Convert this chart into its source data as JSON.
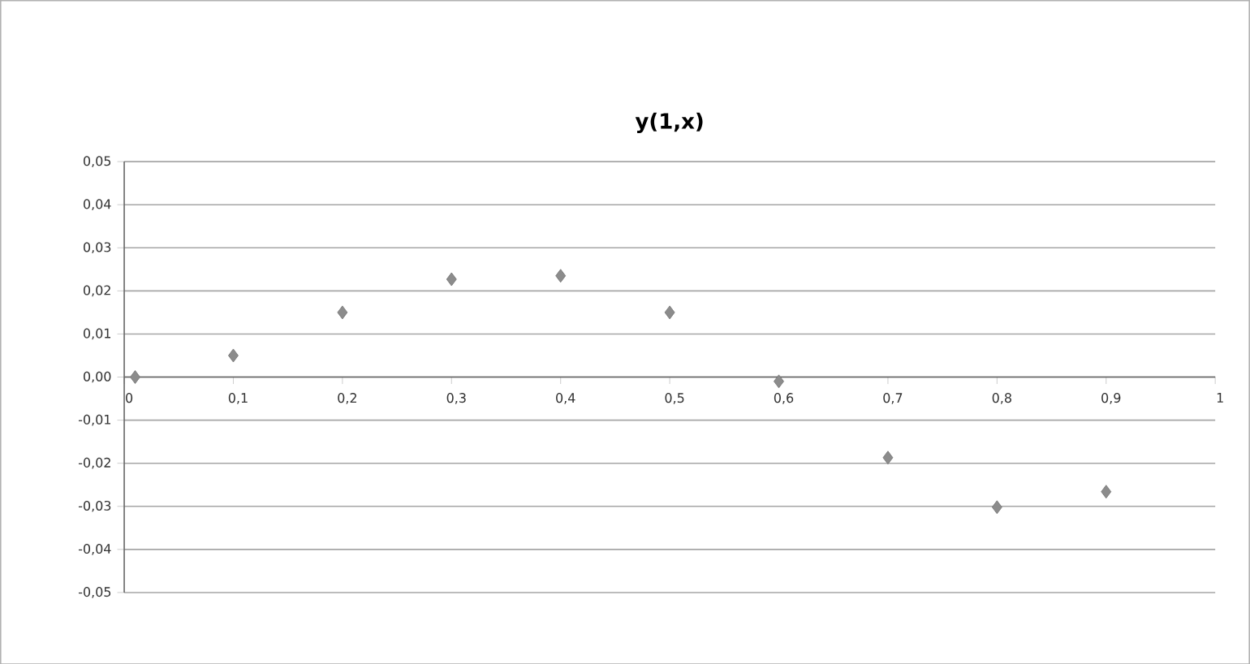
{
  "chart_data": {
    "type": "scatter",
    "title": "y(1,x)",
    "x": [
      0.01,
      0.1,
      0.2,
      0.3,
      0.4,
      0.5,
      0.6,
      0.7,
      0.8,
      0.9
    ],
    "values": [
      0.0,
      0.005,
      0.015,
      0.0227,
      0.0235,
      0.015,
      -0.001,
      -0.0187,
      -0.0302,
      -0.0266
    ],
    "color": "#8c8c8c",
    "marker": "diamond",
    "grid": "y",
    "xlim": [
      0,
      1
    ],
    "ylim": [
      -0.05,
      0.05
    ],
    "xticks": [
      0,
      {
        "value": 0.1,
        "label": "0,1"
      },
      {
        "value": 0.2,
        "label": "0,2"
      },
      {
        "value": 0.3,
        "label": "0,3"
      },
      {
        "value": 0.4,
        "label": "0,4"
      },
      {
        "value": 0.5,
        "label": "0,5"
      },
      {
        "value": 0.6,
        "label": "0,6"
      },
      {
        "value": 0.7,
        "label": "0,7"
      },
      {
        "value": 0.8,
        "label": "0,8"
      },
      {
        "value": 0.9,
        "label": "0,9"
      },
      1
    ],
    "yticks": [
      {
        "value": -0.05,
        "label": "-0,05"
      },
      {
        "value": -0.04,
        "label": "-0,04"
      },
      {
        "value": -0.03,
        "label": "-0,03"
      },
      {
        "value": -0.02,
        "label": "-0,02"
      },
      {
        "value": -0.01,
        "label": "-0,01"
      },
      {
        "value": 0.0,
        "label": "0,00"
      },
      {
        "value": 0.01,
        "label": "0,01"
      },
      {
        "value": 0.02,
        "label": "0,02"
      },
      {
        "value": 0.03,
        "label": "0,03"
      },
      {
        "value": 0.04,
        "label": "0,04"
      },
      {
        "value": 0.05,
        "label": "0,05"
      }
    ]
  }
}
